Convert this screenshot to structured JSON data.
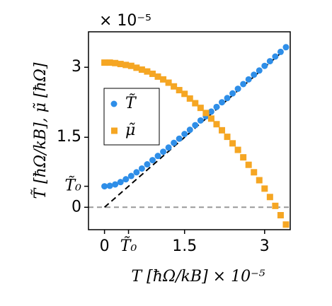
{
  "chart_data": {
    "type": "scatter",
    "offset_label": "× 10⁻⁵",
    "xlabel": "T [ħΩ/kB] × 10⁻⁵",
    "ylabel": "T̃ [ħΩ/kB], μ̃ [ħΩ]",
    "xlim": [
      -0.3,
      3.48
    ],
    "ylim": [
      -0.48,
      3.76
    ],
    "xticks": [
      0,
      {
        "value": 0.45,
        "label": "T̃₀"
      },
      1.5,
      3
    ],
    "yticks": [
      0,
      {
        "value": 0.45,
        "label": "T̃₀"
      },
      1.5,
      3
    ],
    "legend": "center left",
    "x": [
      0,
      0.1,
      0.2,
      0.3,
      0.4,
      0.5,
      0.6,
      0.7,
      0.8,
      0.9,
      1.0,
      1.1,
      1.2,
      1.3,
      1.4,
      1.5,
      1.6,
      1.7,
      1.8,
      1.9,
      2.0,
      2.1,
      2.2,
      2.3,
      2.4,
      2.5,
      2.6,
      2.7,
      2.8,
      2.9,
      3.0,
      3.1,
      3.2,
      3.3,
      3.4
    ],
    "series": [
      {
        "name": "T̃",
        "color": "#2e8ee8",
        "marker": "circle",
        "values": [
          0.45,
          0.46,
          0.49,
          0.54,
          0.6,
          0.67,
          0.75,
          0.83,
          0.92,
          1.01,
          1.1,
          1.19,
          1.28,
          1.38,
          1.47,
          1.57,
          1.66,
          1.76,
          1.86,
          1.95,
          2.05,
          2.15,
          2.25,
          2.34,
          2.44,
          2.54,
          2.64,
          2.74,
          2.84,
          2.93,
          3.03,
          3.13,
          3.23,
          3.33,
          3.43
        ]
      },
      {
        "name": "μ̃",
        "color": "#f5a623",
        "marker": "square",
        "values": [
          3.1,
          3.1,
          3.09,
          3.07,
          3.05,
          3.03,
          2.99,
          2.95,
          2.91,
          2.86,
          2.8,
          2.74,
          2.67,
          2.59,
          2.51,
          2.43,
          2.33,
          2.23,
          2.13,
          2.02,
          1.9,
          1.78,
          1.65,
          1.51,
          1.37,
          1.23,
          1.07,
          0.91,
          0.75,
          0.58,
          0.4,
          0.22,
          0.03,
          -0.17,
          -0.37
        ]
      }
    ]
  }
}
